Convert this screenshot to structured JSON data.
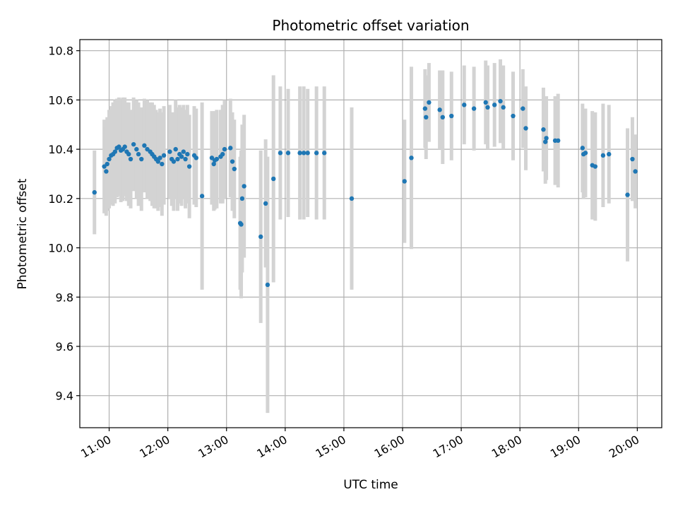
{
  "chart_data": {
    "type": "scatter",
    "title": "Photometric offset variation",
    "xlabel": "UTC time",
    "ylabel": "Photometric offset",
    "xlim": [
      "10:30",
      "20:25"
    ],
    "ylim": [
      9.27,
      10.845
    ],
    "x_ticks": [
      "11:00",
      "12:00",
      "13:00",
      "14:00",
      "15:00",
      "16:00",
      "17:00",
      "18:00",
      "19:00",
      "20:00"
    ],
    "y_ticks": [
      "9.4",
      "9.6",
      "9.8",
      "10.0",
      "10.2",
      "10.4",
      "10.6",
      "10.8"
    ],
    "grid": true,
    "series": [
      {
        "marker_color": "#1f77b4",
        "errorbar_color": "#d3d3d3",
        "points": [
          [
            "10:45",
            10.225,
            0.17
          ],
          [
            "10:55",
            10.33,
            0.19
          ],
          [
            "10:57",
            10.31,
            0.18
          ],
          [
            "10:58",
            10.34,
            0.19
          ],
          [
            "11:00",
            10.36,
            0.2
          ],
          [
            "11:02",
            10.375,
            0.2
          ],
          [
            "11:04",
            10.38,
            0.21
          ],
          [
            "11:06",
            10.39,
            0.21
          ],
          [
            "11:08",
            10.405,
            0.2
          ],
          [
            "11:10",
            10.41,
            0.2
          ],
          [
            "11:12",
            10.395,
            0.21
          ],
          [
            "11:14",
            10.4,
            0.21
          ],
          [
            "11:16",
            10.41,
            0.2
          ],
          [
            "11:18",
            10.39,
            0.2
          ],
          [
            "11:20",
            10.38,
            0.21
          ],
          [
            "11:22",
            10.36,
            0.2
          ],
          [
            "11:25",
            10.42,
            0.19
          ],
          [
            "11:28",
            10.4,
            0.2
          ],
          [
            "11:30",
            10.38,
            0.21
          ],
          [
            "11:33",
            10.36,
            0.21
          ],
          [
            "11:36",
            10.415,
            0.19
          ],
          [
            "11:39",
            10.4,
            0.2
          ],
          [
            "11:42",
            10.39,
            0.2
          ],
          [
            "11:44",
            10.38,
            0.21
          ],
          [
            "11:46",
            10.37,
            0.21
          ],
          [
            "11:48",
            10.36,
            0.2
          ],
          [
            "11:50",
            10.35,
            0.2
          ],
          [
            "11:52",
            10.365,
            0.2
          ],
          [
            "11:54",
            10.34,
            0.21
          ],
          [
            "11:56",
            10.375,
            0.2
          ],
          [
            "12:02",
            10.39,
            0.19
          ],
          [
            "12:04",
            10.36,
            0.19
          ],
          [
            "12:06",
            10.35,
            0.2
          ],
          [
            "12:08",
            10.4,
            0.2
          ],
          [
            "12:10",
            10.36,
            0.21
          ],
          [
            "12:12",
            10.38,
            0.2
          ],
          [
            "12:14",
            10.37,
            0.2
          ],
          [
            "12:16",
            10.39,
            0.19
          ],
          [
            "12:18",
            10.36,
            0.2
          ],
          [
            "12:20",
            10.38,
            0.2
          ],
          [
            "12:22",
            10.33,
            0.21
          ],
          [
            "12:27",
            10.375,
            0.2
          ],
          [
            "12:29",
            10.365,
            0.2
          ],
          [
            "12:35",
            10.21,
            0.38
          ],
          [
            "12:45",
            10.365,
            0.19
          ],
          [
            "12:47",
            10.34,
            0.19
          ],
          [
            "12:48",
            10.355,
            0.2
          ],
          [
            "12:50",
            10.36,
            0.2
          ],
          [
            "12:54",
            10.37,
            0.19
          ],
          [
            "12:56",
            10.38,
            0.2
          ],
          [
            "12:58",
            10.4,
            0.2
          ],
          [
            "13:04",
            10.405,
            0.2
          ],
          [
            "13:06",
            10.35,
            0.2
          ],
          [
            "13:08",
            10.32,
            0.2
          ],
          [
            "13:14",
            10.1,
            0.27
          ],
          [
            "13:15",
            10.095,
            0.3
          ],
          [
            "13:16",
            10.2,
            0.3
          ],
          [
            "13:18",
            10.25,
            0.29
          ],
          [
            "13:35",
            10.045,
            0.35
          ],
          [
            "13:40",
            10.18,
            0.26
          ],
          [
            "13:42",
            9.85,
            0.52
          ],
          [
            "13:48",
            10.28,
            0.42
          ],
          [
            "13:55",
            10.385,
            0.27
          ],
          [
            "14:03",
            10.385,
            0.26
          ],
          [
            "14:15",
            10.385,
            0.27
          ],
          [
            "14:19",
            10.385,
            0.27
          ],
          [
            "14:23",
            10.385,
            0.26
          ],
          [
            "14:32",
            10.385,
            0.27
          ],
          [
            "14:40",
            10.385,
            0.27
          ],
          [
            "15:08",
            10.2,
            0.37
          ],
          [
            "16:02",
            10.27,
            0.25
          ],
          [
            "16:09",
            10.365,
            0.37
          ],
          [
            "16:23",
            10.565,
            0.16
          ],
          [
            "16:24",
            10.53,
            0.17
          ],
          [
            "16:27",
            10.59,
            0.16
          ],
          [
            "16:38",
            10.56,
            0.16
          ],
          [
            "16:41",
            10.53,
            0.19
          ],
          [
            "16:50",
            10.535,
            0.18
          ],
          [
            "17:03",
            10.58,
            0.16
          ],
          [
            "17:13",
            10.565,
            0.17
          ],
          [
            "17:25",
            10.59,
            0.17
          ],
          [
            "17:27",
            10.57,
            0.17
          ],
          [
            "17:34",
            10.58,
            0.17
          ],
          [
            "17:40",
            10.595,
            0.17
          ],
          [
            "17:43",
            10.57,
            0.17
          ],
          [
            "17:53",
            10.535,
            0.18
          ],
          [
            "18:03",
            10.565,
            0.16
          ],
          [
            "18:06",
            10.485,
            0.17
          ],
          [
            "18:24",
            10.48,
            0.17
          ],
          [
            "18:26",
            10.43,
            0.17
          ],
          [
            "18:27",
            10.445,
            0.17
          ],
          [
            "18:36",
            10.435,
            0.18
          ],
          [
            "18:39",
            10.435,
            0.19
          ],
          [
            "19:04",
            10.405,
            0.18
          ],
          [
            "19:05",
            10.38,
            0.18
          ],
          [
            "19:07",
            10.385,
            0.18
          ],
          [
            "19:14",
            10.335,
            0.22
          ],
          [
            "19:17",
            10.33,
            0.22
          ],
          [
            "19:25",
            10.375,
            0.21
          ],
          [
            "19:31",
            10.38,
            0.2
          ],
          [
            "19:50",
            10.215,
            0.27
          ],
          [
            "19:55",
            10.36,
            0.17
          ],
          [
            "19:58",
            10.31,
            0.15
          ]
        ]
      }
    ]
  }
}
